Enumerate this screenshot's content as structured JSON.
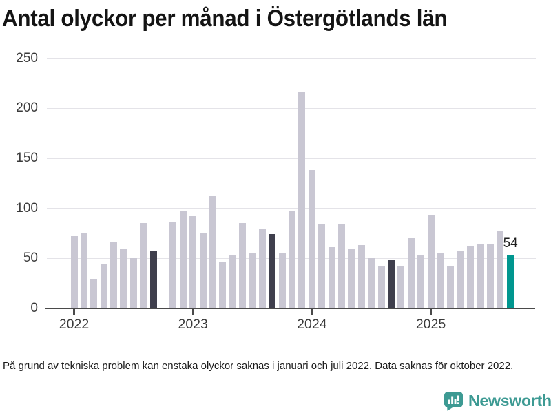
{
  "title": "Antal olyckor per månad i Östergötlands län",
  "footnote": "På grund av tekniska problem kan enstaka olyckor saknas i januari och juli 2022. Data saknas för oktober 2022.",
  "logo": {
    "name": "Newsworthy"
  },
  "colors": {
    "bar_default": "#c9c7d3",
    "bar_highlight_dark": "#3f3f4d",
    "bar_highlight_teal": "#00968f",
    "grid": "#e4e3e8",
    "axis": "#4a4a4a",
    "tick_label": "#3a3a3a",
    "logo_teal": "#3d9a93"
  },
  "chart_data": {
    "type": "bar",
    "title": "Antal olyckor per månad i Östergötlands län",
    "xlabel": "",
    "ylabel": "",
    "ylim": [
      0,
      250
    ],
    "yticks": [
      0,
      50,
      100,
      150,
      200,
      250
    ],
    "x_tick_labels": [
      "2022",
      "2023",
      "2024",
      "2025"
    ],
    "grid": "horizontal",
    "legend": "none",
    "missing_months": [
      "2022-10"
    ],
    "annotation": {
      "text": "54",
      "ym": "2025-09"
    },
    "points": [
      {
        "ym": "2022-01",
        "v": 72
      },
      {
        "ym": "2022-02",
        "v": 76
      },
      {
        "ym": "2022-03",
        "v": 29
      },
      {
        "ym": "2022-04",
        "v": 44
      },
      {
        "ym": "2022-05",
        "v": 66
      },
      {
        "ym": "2022-06",
        "v": 59
      },
      {
        "ym": "2022-07",
        "v": 50
      },
      {
        "ym": "2022-08",
        "v": 85
      },
      {
        "ym": "2022-09",
        "v": 58,
        "hl": "dark"
      },
      {
        "ym": "2022-11",
        "v": 87
      },
      {
        "ym": "2022-12",
        "v": 97
      },
      {
        "ym": "2023-01",
        "v": 92
      },
      {
        "ym": "2023-02",
        "v": 76
      },
      {
        "ym": "2023-03",
        "v": 112
      },
      {
        "ym": "2023-04",
        "v": 47
      },
      {
        "ym": "2023-05",
        "v": 54
      },
      {
        "ym": "2023-06",
        "v": 85
      },
      {
        "ym": "2023-07",
        "v": 56
      },
      {
        "ym": "2023-08",
        "v": 80
      },
      {
        "ym": "2023-09",
        "v": 74,
        "hl": "dark"
      },
      {
        "ym": "2023-10",
        "v": 56
      },
      {
        "ym": "2023-11",
        "v": 98
      },
      {
        "ym": "2023-12",
        "v": 216
      },
      {
        "ym": "2024-01",
        "v": 138
      },
      {
        "ym": "2024-02",
        "v": 84
      },
      {
        "ym": "2024-03",
        "v": 61
      },
      {
        "ym": "2024-04",
        "v": 84
      },
      {
        "ym": "2024-05",
        "v": 59
      },
      {
        "ym": "2024-06",
        "v": 63
      },
      {
        "ym": "2024-07",
        "v": 50
      },
      {
        "ym": "2024-08",
        "v": 42
      },
      {
        "ym": "2024-09",
        "v": 49,
        "hl": "dark"
      },
      {
        "ym": "2024-10",
        "v": 42
      },
      {
        "ym": "2024-11",
        "v": 70
      },
      {
        "ym": "2024-12",
        "v": 53
      },
      {
        "ym": "2025-01",
        "v": 93
      },
      {
        "ym": "2025-02",
        "v": 55
      },
      {
        "ym": "2025-03",
        "v": 42
      },
      {
        "ym": "2025-04",
        "v": 57
      },
      {
        "ym": "2025-05",
        "v": 62
      },
      {
        "ym": "2025-06",
        "v": 65
      },
      {
        "ym": "2025-07",
        "v": 65
      },
      {
        "ym": "2025-08",
        "v": 78
      },
      {
        "ym": "2025-09",
        "v": 54,
        "hl": "teal"
      }
    ]
  }
}
